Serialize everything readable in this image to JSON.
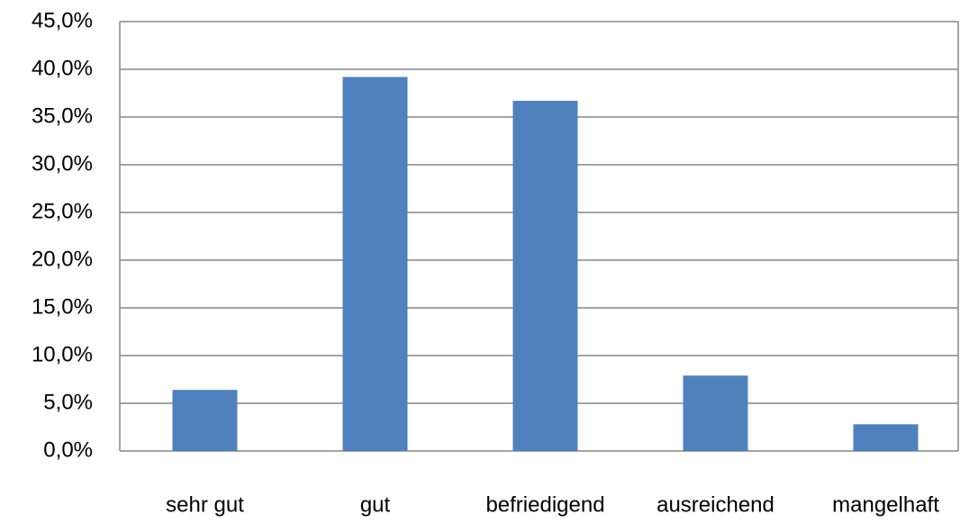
{
  "chart_data": {
    "type": "bar",
    "categories": [
      "sehr gut",
      "gut",
      "befriedigend",
      "ausreichend",
      "mangelhaft"
    ],
    "values": [
      6.4,
      39.2,
      36.7,
      7.9,
      2.8
    ],
    "color": "#4f81bd",
    "ylim": [
      0,
      45
    ],
    "yticks": [
      {
        "value": 0,
        "label": "0,0%"
      },
      {
        "value": 5,
        "label": "5,0%"
      },
      {
        "value": 10,
        "label": "10,0%"
      },
      {
        "value": 15,
        "label": "15,0%"
      },
      {
        "value": 20,
        "label": "20,0%"
      },
      {
        "value": 25,
        "label": "25,0%"
      },
      {
        "value": 30,
        "label": "30,0%"
      },
      {
        "value": 35,
        "label": "35,0%"
      },
      {
        "value": 40,
        "label": "40,0%"
      },
      {
        "value": 45,
        "label": "45,0%"
      }
    ],
    "grid": true
  }
}
